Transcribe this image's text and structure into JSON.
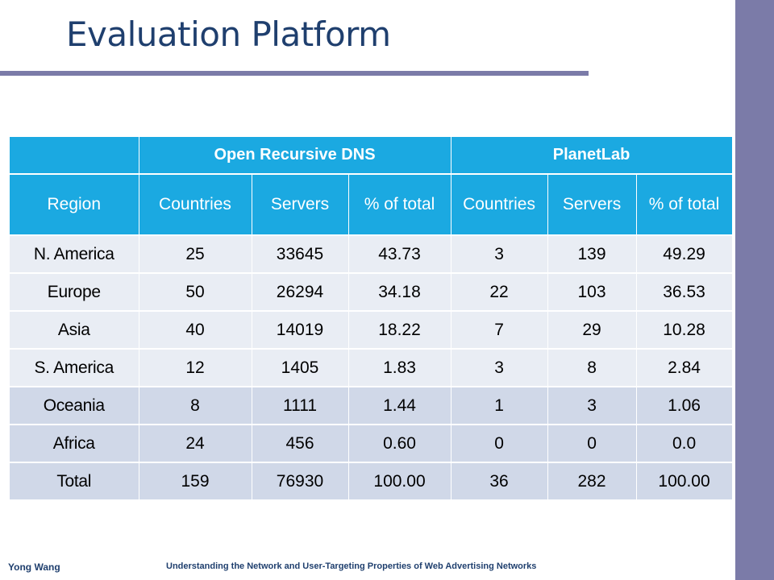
{
  "slide": {
    "title": "Evaluation Platform"
  },
  "table": {
    "groups": [
      "Open Recursive DNS",
      "PlanetLab"
    ],
    "headers": [
      "Region",
      "Countries",
      "Servers",
      "% of total",
      "Countries",
      "Servers",
      "% of total"
    ],
    "rows": [
      [
        "N. America",
        "25",
        "33645",
        "43.73",
        "3",
        "139",
        "49.29"
      ],
      [
        "Europe",
        "50",
        "26294",
        "34.18",
        "22",
        "103",
        "36.53"
      ],
      [
        "Asia",
        "40",
        "14019",
        "18.22",
        "7",
        "29",
        "10.28"
      ],
      [
        "S. America",
        "12",
        "1405",
        "1.83",
        "3",
        "8",
        "2.84"
      ],
      [
        "Oceania",
        "8",
        "1111",
        "1.44",
        "1",
        "3",
        "1.06"
      ],
      [
        "Africa",
        "24",
        "456",
        "0.60",
        "0",
        "0",
        "0.0"
      ],
      [
        "Total",
        "159",
        "76930",
        "100.00",
        "36",
        "282",
        "100.00"
      ]
    ]
  },
  "footer": {
    "author": "Yong Wang",
    "talk_title": "Understanding the Network and User-Targeting Properties of Web Advertising Networks"
  },
  "colors": {
    "header_blue": "#1ba9e1",
    "title_navy": "#1f3f6e",
    "accent_purple": "#7b7ba8",
    "row_light": "#e9edf4",
    "row_dark": "#d0d8e8"
  }
}
